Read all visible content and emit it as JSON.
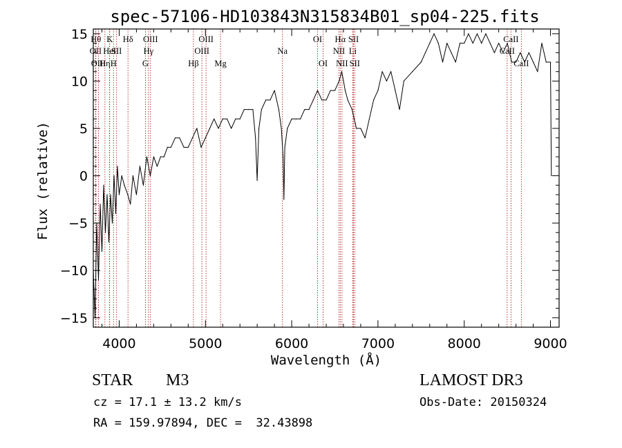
{
  "chart_data": {
    "type": "line",
    "title": "spec-57106-HD103843N315834B01_sp04-225.fits",
    "xlabel": "Wavelength (Å)",
    "ylabel": "Flux (relative)",
    "xlim": [
      3700,
      9100
    ],
    "ylim": [
      -16,
      15.5
    ],
    "x_ticks": [
      4000,
      5000,
      6000,
      7000,
      8000,
      9000
    ],
    "y_ticks": [
      -15,
      -10,
      -5,
      0,
      5,
      10,
      15
    ],
    "grid": false,
    "series": [
      {
        "x": [
          3700,
          3720,
          3740,
          3760,
          3780,
          3800,
          3820,
          3840,
          3860,
          3880,
          3900,
          3920,
          3940,
          3960,
          3980,
          4000,
          4030,
          4060,
          4100,
          4130,
          4160,
          4200,
          4240,
          4280,
          4320,
          4360,
          4400,
          4440,
          4480,
          4520,
          4560,
          4600,
          4650,
          4700,
          4750,
          4800,
          4850,
          4900,
          4950,
          5000,
          5050,
          5100,
          5150,
          5200,
          5250,
          5300,
          5350,
          5400,
          5450,
          5500,
          5550,
          5580,
          5600,
          5620,
          5650,
          5700,
          5750,
          5800,
          5850,
          5880,
          5900,
          5910,
          5920,
          5950,
          6000,
          6050,
          6100,
          6150,
          6200,
          6250,
          6300,
          6350,
          6400,
          6450,
          6500,
          6550,
          6580,
          6600,
          6620,
          6650,
          6700,
          6750,
          6800,
          6850,
          6900,
          6950,
          7000,
          7050,
          7100,
          7150,
          7200,
          7250,
          7300,
          7400,
          7500,
          7550,
          7600,
          7650,
          7700,
          7750,
          7800,
          7850,
          7900,
          7950,
          8000,
          8050,
          8100,
          8150,
          8200,
          8250,
          8300,
          8350,
          8400,
          8450,
          8500,
          8550,
          8600,
          8650,
          8700,
          8750,
          8800,
          8850,
          8900,
          8950,
          9000,
          9010
        ],
        "y": [
          -10,
          -15,
          -5,
          -11,
          -3,
          -8,
          -1,
          -6,
          -2,
          -7,
          -2,
          -5,
          0,
          -4,
          1,
          -2,
          0,
          -1,
          -2,
          -3,
          0,
          -2,
          1,
          -1,
          2,
          0,
          2,
          1,
          2,
          2,
          3,
          3,
          4,
          4,
          3,
          3,
          4,
          5,
          3,
          4,
          5,
          6,
          5,
          6,
          6,
          5,
          6,
          6,
          7,
          7,
          7,
          4,
          -0.5,
          5,
          7,
          8,
          8,
          9,
          7,
          5,
          2,
          -2.5,
          3,
          5,
          6,
          6,
          6,
          7,
          7,
          8,
          9,
          8,
          8,
          9,
          9,
          10,
          11,
          10,
          9,
          8,
          7,
          5,
          5,
          4,
          6,
          8,
          9,
          11,
          10,
          11,
          9,
          7,
          10,
          11,
          12,
          13,
          14,
          15,
          14,
          12,
          14,
          13,
          12,
          14,
          14,
          15,
          14,
          15,
          14,
          15,
          14,
          13,
          14,
          13,
          14,
          12,
          12,
          13,
          12,
          13,
          12,
          11,
          14,
          12,
          12,
          0
        ]
      }
    ],
    "lines": [
      {
        "x": 3730,
        "label": "Hθ",
        "row": 0
      },
      {
        "x": 3727,
        "label": "OII",
        "row": 1
      },
      {
        "x": 3760,
        "label": "OIII",
        "row": 2
      },
      {
        "x": 3835,
        "label": "Hη",
        "row": 2
      },
      {
        "x": 3890,
        "label": "K",
        "row": 0
      },
      {
        "x": 3889,
        "label": "HeI",
        "row": 1
      },
      {
        "x": 3934,
        "label": "H",
        "row": 2
      },
      {
        "x": 3970,
        "label": "SII",
        "row": 1
      },
      {
        "x": 4102,
        "label": "Hδ",
        "row": 0
      },
      {
        "x": 4304,
        "label": "G",
        "row": 2
      },
      {
        "x": 4363,
        "label": "OIII",
        "row": 0
      },
      {
        "x": 4340,
        "label": "Hγ",
        "row": 1
      },
      {
        "x": 4861,
        "label": "Hβ",
        "row": 2
      },
      {
        "x": 4959,
        "label": "OIII",
        "row": 1
      },
      {
        "x": 5007,
        "label": "OIII",
        "row": 0
      },
      {
        "x": 5175,
        "label": "Mg",
        "row": 2
      },
      {
        "x": 5893,
        "label": "Na",
        "row": 1
      },
      {
        "x": 6300,
        "label": "OI",
        "row": 0
      },
      {
        "x": 6364,
        "label": "OI",
        "row": 2
      },
      {
        "x": 6548,
        "label": "NII",
        "row": 1
      },
      {
        "x": 6563,
        "label": "Hα",
        "row": 0
      },
      {
        "x": 6583,
        "label": "NII",
        "row": 2
      },
      {
        "x": 6708,
        "label": "Li",
        "row": 1
      },
      {
        "x": 6717,
        "label": "SII",
        "row": 0
      },
      {
        "x": 6731,
        "label": "SII",
        "row": 2
      },
      {
        "x": 8498,
        "label": "CaII",
        "row": 1
      },
      {
        "x": 8542,
        "label": "CaII",
        "row": 0
      },
      {
        "x": 8662,
        "label": "CaII",
        "row": 2
      }
    ]
  },
  "info": {
    "class": "STAR",
    "subclass": "M3",
    "cz": "cz = 17.1 ± 13.2 km/s",
    "radec": "RA = 159.97894, DEC =  32.43898",
    "survey": "LAMOST DR3",
    "obs_date": "Obs-Date: 20150324"
  },
  "colors": {
    "spectrum": "#000000",
    "line_marker": "#a00000",
    "axis": "#000000"
  }
}
